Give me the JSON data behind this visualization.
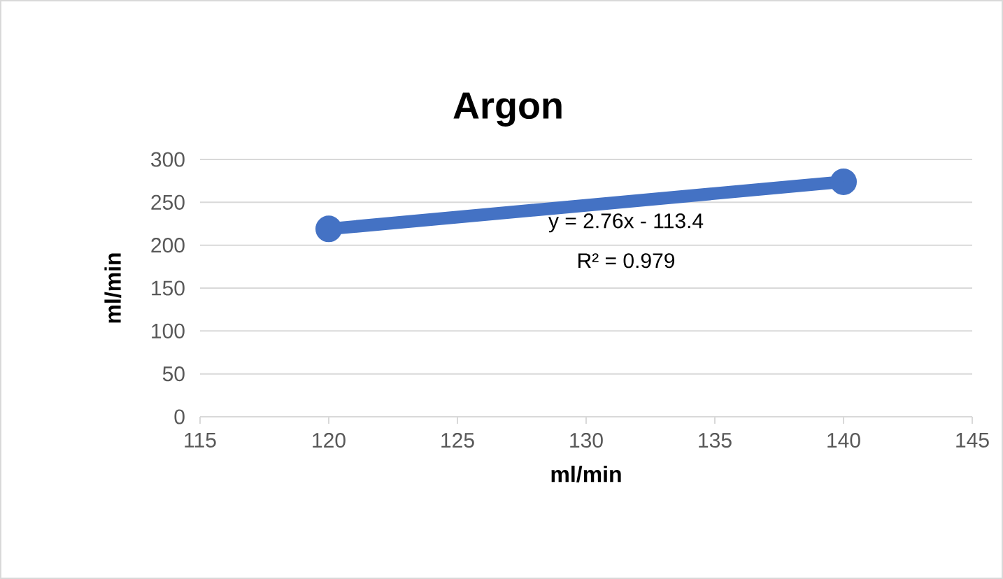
{
  "chart_data": {
    "type": "line",
    "title": "Argon",
    "xlabel": "ml/min",
    "ylabel": "ml/min",
    "x": [
      120,
      140
    ],
    "series": [
      {
        "color": "#4472c4",
        "values": [
          219,
          274
        ]
      }
    ],
    "xlim": [
      115,
      145
    ],
    "xticks": [
      115,
      120,
      125,
      130,
      135,
      140,
      145
    ],
    "ylim": [
      0,
      300
    ],
    "yticks": [
      0,
      50,
      100,
      150,
      200,
      250,
      300
    ],
    "grid": "y",
    "marker": "circle",
    "line_style": "solid",
    "annotations": [
      "y = 2.76x - 113.4",
      "R² = 0.979"
    ]
  }
}
